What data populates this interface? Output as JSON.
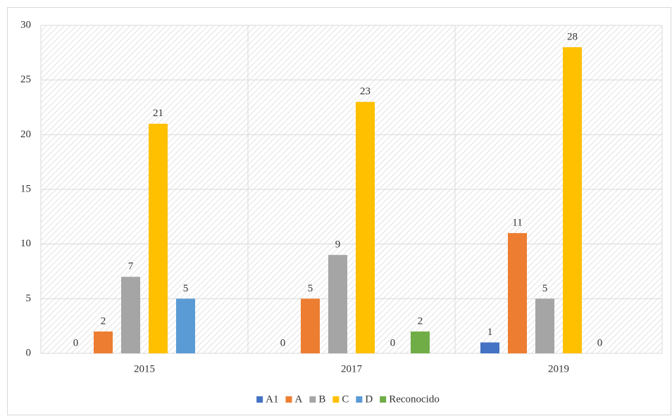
{
  "chart_data": {
    "type": "bar",
    "categories": [
      "2015",
      "2017",
      "2019"
    ],
    "series": [
      {
        "name": "A1",
        "color": "#4472c4",
        "values": [
          0,
          0,
          1
        ]
      },
      {
        "name": "A",
        "color": "#ed7d31",
        "values": [
          2,
          5,
          11
        ]
      },
      {
        "name": "B",
        "color": "#a5a5a5",
        "values": [
          7,
          9,
          5
        ]
      },
      {
        "name": "C",
        "color": "#ffc000",
        "values": [
          21,
          23,
          28
        ]
      },
      {
        "name": "D",
        "color": "#5b9bd5",
        "values": [
          5,
          0,
          0
        ]
      },
      {
        "name": "Reconocido",
        "color": "#70ad47",
        "values": [
          null,
          2,
          null
        ]
      }
    ],
    "ylim": [
      0,
      30
    ],
    "yticks": [
      0,
      5,
      10,
      15,
      20,
      25,
      30
    ],
    "grid": true,
    "legend": "bottom"
  }
}
